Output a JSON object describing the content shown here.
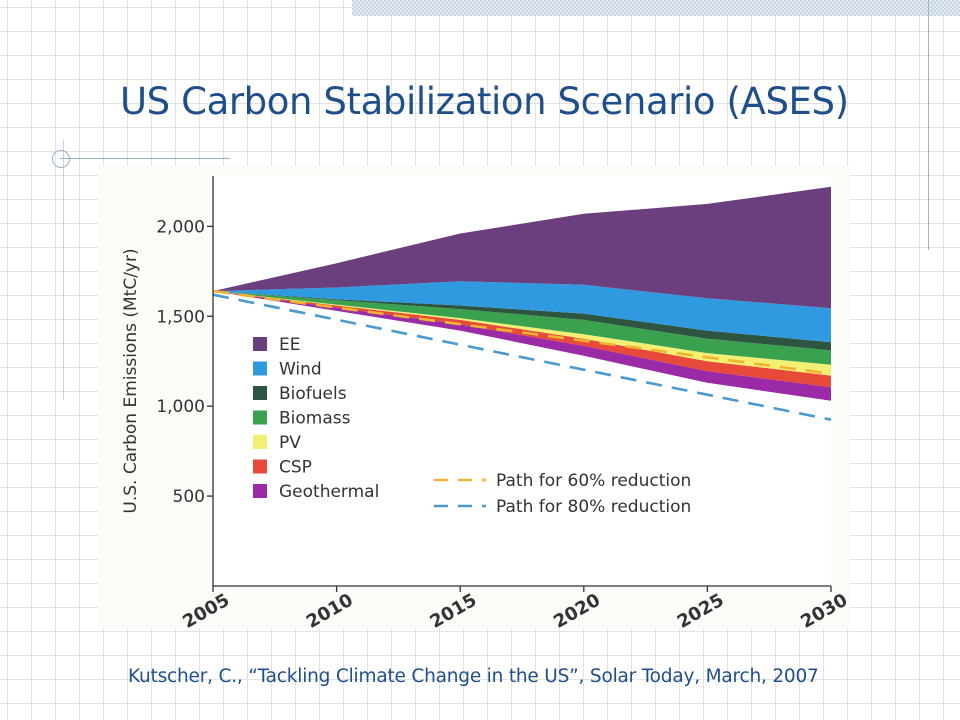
{
  "slide": {
    "title": "US Carbon Stabilization Scenario (ASES)",
    "source": "Kutscher, C., “Tackling Climate Change in the US”, Solar Today, March, 2007"
  },
  "colors": {
    "title": "#1f4e8c",
    "EE": "#6b3f7e",
    "Wind": "#2f9ae0",
    "Biofuels": "#2e5540",
    "Biomass": "#3aa24f",
    "PV": "#f2ef73",
    "CSP": "#e84a3a",
    "Geothermal": "#9a2aa6",
    "path60": "#f0b432",
    "path80": "#4a9ad1"
  },
  "chart_data": {
    "type": "area",
    "title": "",
    "xlabel": "",
    "ylabel": "U.S. Carbon Emissions (MtC/yr)",
    "x": [
      2005,
      2010,
      2015,
      2020,
      2025,
      2030
    ],
    "xticks": [
      "2005",
      "2010",
      "2015",
      "2020",
      "2025",
      "2030"
    ],
    "yticks": [
      {
        "value": 500,
        "label": "500"
      },
      {
        "value": 1000,
        "label": "1,000"
      },
      {
        "value": 1500,
        "label": "1,500"
      },
      {
        "value": 2000,
        "label": "2,000"
      }
    ],
    "xlim": [
      2005,
      2030
    ],
    "ylim": [
      0,
      2280
    ],
    "stack_base": [
      1640,
      1530,
      1420,
      1280,
      1130,
      1030
    ],
    "series": [
      {
        "name": "EE",
        "values": [
          0,
          135,
          265,
          395,
          525,
          675
        ]
      },
      {
        "name": "Wind",
        "values": [
          0,
          65,
          135,
          160,
          180,
          190
        ]
      },
      {
        "name": "Biofuels",
        "values": [
          0,
          5,
          20,
          35,
          45,
          45
        ]
      },
      {
        "name": "Biomass",
        "values": [
          0,
          25,
          50,
          80,
          80,
          80
        ]
      },
      {
        "name": "PV",
        "values": [
          0,
          5,
          10,
          25,
          45,
          60
        ]
      },
      {
        "name": "CSP",
        "values": [
          0,
          12,
          25,
          40,
          55,
          65
        ]
      },
      {
        "name": "Geothermal",
        "values": [
          0,
          18,
          35,
          55,
          65,
          75
        ]
      }
    ],
    "reference_lines": [
      {
        "name": "Path for 60% reduction",
        "values": [
          1640,
          1548,
          1456,
          1364,
          1272,
          1180
        ]
      },
      {
        "name": "Path for 80% reduction",
        "values": [
          1620,
          1481,
          1342,
          1203,
          1064,
          925
        ]
      }
    ],
    "legend_position": "left-middle (stack legend); bottom-center (reduction paths)"
  }
}
